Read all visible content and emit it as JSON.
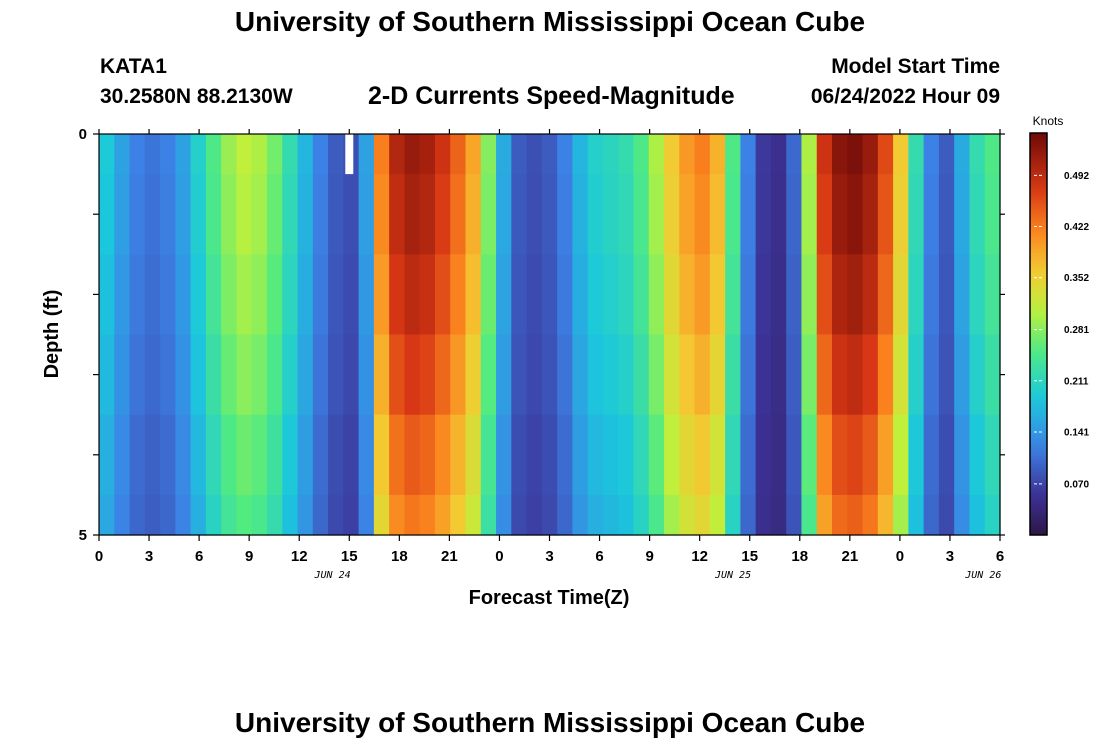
{
  "header": {
    "title": "University of Southern Mississippi Ocean Cube",
    "station_id": "KATA1",
    "station_coords": "30.2580N  88.2130W",
    "subtitle": "2-D Currents Speed-Magnitude",
    "model_start_label": "Model Start Time",
    "model_start_value": "06/24/2022 Hour 09"
  },
  "footer": {
    "repeat_title": "University of Southern Mississippi Ocean Cube"
  },
  "chart_data": {
    "type": "heatmap",
    "title": "2-D Currents Speed-Magnitude",
    "xlabel": "Forecast Time(Z)",
    "ylabel": "Depth (ft)",
    "x_hours_from_jun24_00": [
      0,
      54
    ],
    "xlim_hours": [
      0,
      54
    ],
    "ylim_ft": [
      0,
      5
    ],
    "y_tick_labels": [
      "0",
      "5"
    ],
    "x_tick_labels": [
      "0",
      "3",
      "6",
      "9",
      "12",
      "15",
      "18",
      "21",
      "0",
      "3",
      "6",
      "9",
      "12",
      "15",
      "18",
      "21",
      "0",
      "3",
      "6"
    ],
    "date_labels": [
      {
        "hour": 14,
        "label": "JUN 24"
      },
      {
        "hour": 38,
        "label": "JUN 25"
      },
      {
        "hour": 53,
        "label": "JUN 26"
      }
    ],
    "colorbar": {
      "unit": "Knots",
      "min": 0.0,
      "max": 0.55,
      "ticks": [
        0.07,
        0.141,
        0.211,
        0.281,
        0.352,
        0.422,
        0.492
      ],
      "tick_labels": [
        "0.070",
        "0.141",
        "0.211",
        "0.281",
        "0.352",
        "0.422",
        "0.492"
      ]
    },
    "depth_levels_ft": [
      0,
      0.5,
      1.5,
      2.5,
      3.5,
      4.5
    ],
    "surface_speed_profile_knots": [
      0.19,
      0.15,
      0.12,
      0.11,
      0.12,
      0.15,
      0.2,
      0.25,
      0.29,
      0.31,
      0.3,
      0.27,
      0.22,
      0.17,
      0.12,
      0.09,
      0.08,
      0.15,
      0.42,
      0.5,
      0.52,
      0.51,
      0.48,
      0.44,
      0.39,
      0.28,
      0.16,
      0.09,
      0.08,
      0.09,
      0.12,
      0.17,
      0.2,
      0.21,
      0.22,
      0.25,
      0.3,
      0.36,
      0.4,
      0.42,
      0.38,
      0.25,
      0.12,
      0.06,
      0.05,
      0.1,
      0.3,
      0.48,
      0.53,
      0.54,
      0.52,
      0.46,
      0.36,
      0.22,
      0.12,
      0.09,
      0.16,
      0.22,
      0.25
    ],
    "depth_factors": [
      1.0,
      0.98,
      0.95,
      0.91,
      0.86,
      0.82
    ],
    "missing_cell": {
      "hour": 15,
      "depth_ft": 0
    }
  }
}
